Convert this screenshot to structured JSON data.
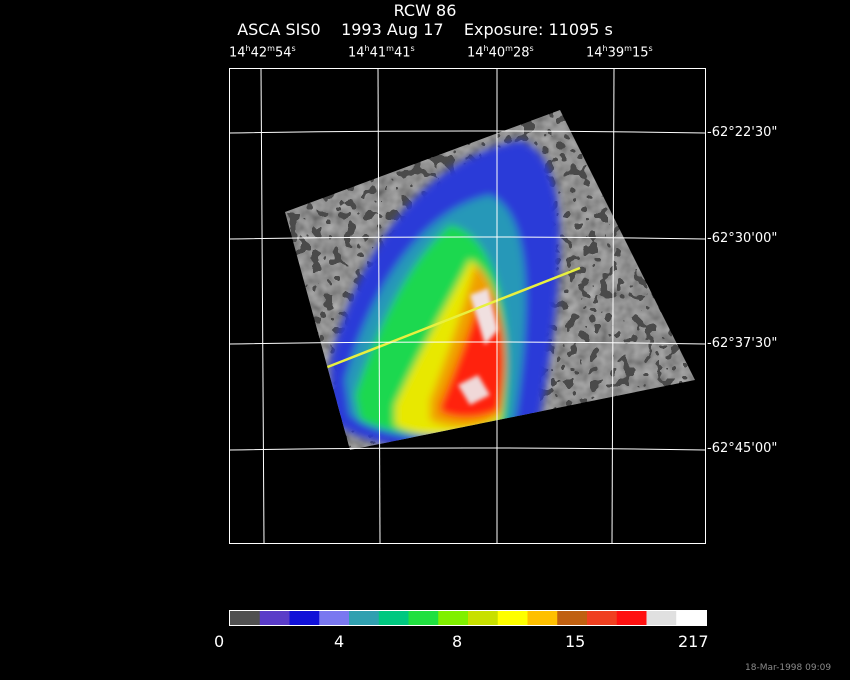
{
  "title": "RCW 86",
  "subtitle": {
    "instrument": "ASCA SIS0",
    "date": "1993 Aug 17",
    "exposure": "Exposure: 11095 s"
  },
  "ra_ticks": [
    {
      "h": "14",
      "m": "42",
      "s": "54"
    },
    {
      "h": "14",
      "m": "41",
      "s": "41"
    },
    {
      "h": "14",
      "m": "40",
      "s": "28"
    },
    {
      "h": "14",
      "m": "39",
      "s": "15"
    }
  ],
  "dec_ticks": [
    "-62°22'30\"",
    "-62°30'00\"",
    "-62°37'30\"",
    "-62°45'00\""
  ],
  "colorbar": {
    "colors": [
      "#505050",
      "#5a3cc8",
      "#1010d8",
      "#7a78f0",
      "#30a0b0",
      "#00c880",
      "#20e040",
      "#80f000",
      "#c8e000",
      "#ffff00",
      "#ffc000",
      "#c06010",
      "#f04020",
      "#ff1010",
      "#e0e0e0",
      "#ffffff"
    ],
    "tick_labels": [
      {
        "value": 0,
        "label": "0"
      },
      {
        "value": 4,
        "label": "4"
      },
      {
        "value": 8,
        "label": "8"
      },
      {
        "value": 15,
        "label": "15"
      },
      {
        "value": 217,
        "label": "217"
      }
    ]
  },
  "timestamp": "18-Mar-1998 09:09"
}
